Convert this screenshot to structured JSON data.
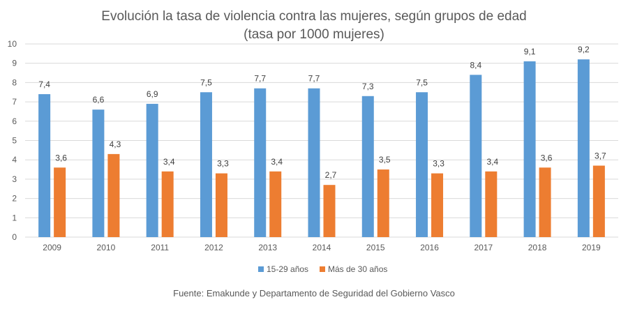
{
  "chart_data": {
    "type": "bar",
    "title": "Evolución la tasa de violencia contra las mujeres, según grupos de edad",
    "subtitle": "(tasa por 1000 mujeres)",
    "xlabel": "",
    "ylabel": "",
    "categories": [
      "2009",
      "2010",
      "2011",
      "2012",
      "2013",
      "2014",
      "2015",
      "2016",
      "2017",
      "2018",
      "2019"
    ],
    "series": [
      {
        "name": "15-29 años",
        "color": "#5B9BD5",
        "values": [
          7.4,
          6.6,
          6.9,
          7.5,
          7.7,
          7.7,
          7.3,
          7.5,
          8.4,
          9.1,
          9.2
        ],
        "labels": [
          "7,4",
          "6,6",
          "6,9",
          "7,5",
          "7,7",
          "7,7",
          "7,3",
          "7,5",
          "8,4",
          "9,1",
          "9,2"
        ]
      },
      {
        "name": "Más de 30 años",
        "color": "#ED7D31",
        "values": [
          3.6,
          4.3,
          3.4,
          3.3,
          3.4,
          2.7,
          3.5,
          3.3,
          3.4,
          3.6,
          3.7
        ],
        "labels": [
          "3,6",
          "4,3",
          "3,4",
          "3,3",
          "3,4",
          "2,7",
          "3,5",
          "3,3",
          "3,4",
          "3,6",
          "3,7"
        ]
      }
    ],
    "ylim": [
      0,
      10
    ],
    "yticks": [
      "0",
      "1",
      "2",
      "3",
      "4",
      "5",
      "6",
      "7",
      "8",
      "9",
      "10"
    ],
    "grid": true,
    "legend_position": "bottom",
    "source": "Fuente: Emakunde y Departamento de Seguridad del Gobierno Vasco"
  }
}
